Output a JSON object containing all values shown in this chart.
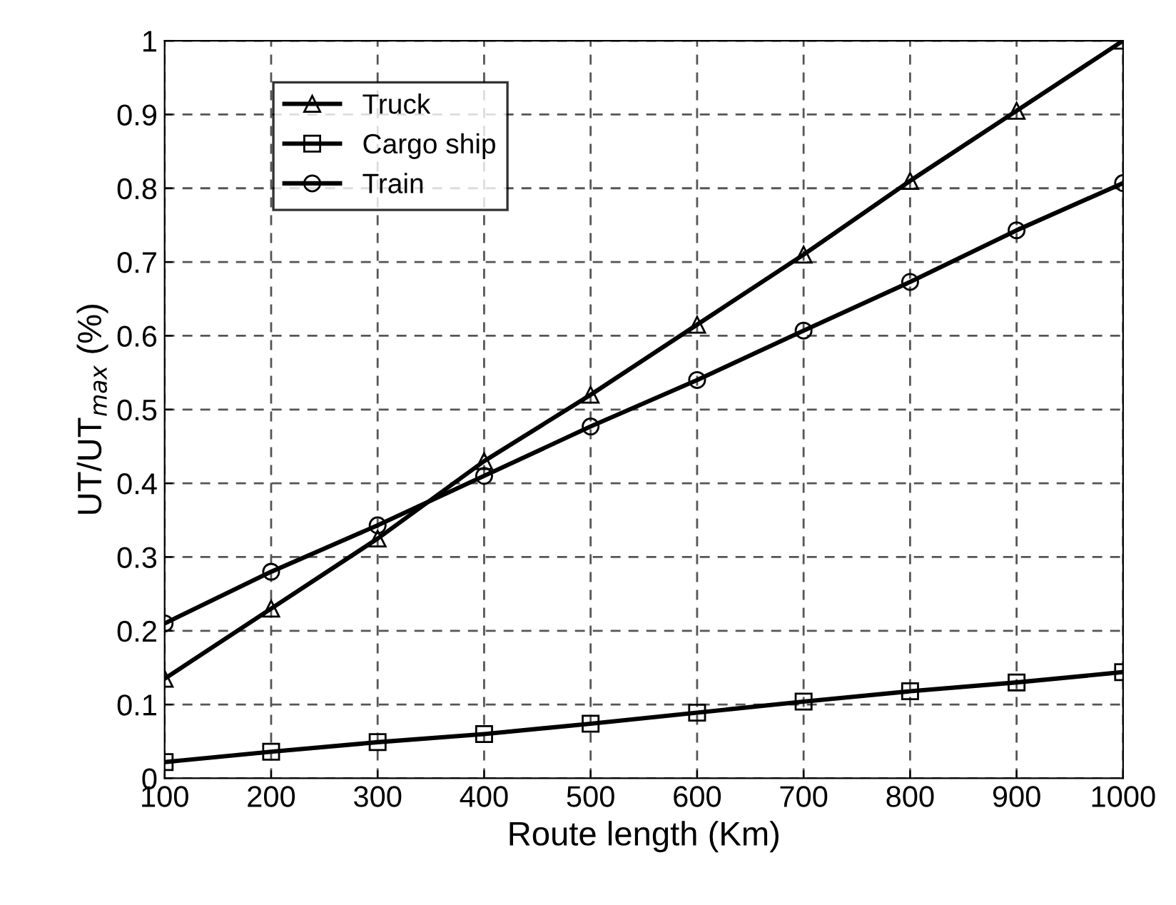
{
  "chart_data": {
    "type": "line",
    "xlabel": "Route length (Km)",
    "ylabel": "UT/UT$_{max}$ (%)",
    "x": [
      100,
      200,
      300,
      400,
      500,
      600,
      700,
      800,
      900,
      1000
    ],
    "xlim": [
      100,
      1000
    ],
    "xticks": [
      100,
      200,
      300,
      400,
      500,
      600,
      700,
      800,
      900,
      1000
    ],
    "ylim": [
      0,
      1
    ],
    "yticks": [
      0,
      0.1,
      0.2,
      0.3,
      0.4,
      0.5,
      0.6,
      0.7,
      0.8,
      0.9,
      1
    ],
    "grid": true,
    "legend": "top left",
    "line_style": "solid",
    "series": [
      {
        "name": "Truck",
        "color": "#000000",
        "marker": "triangle",
        "values": [
          0.135,
          0.23,
          0.325,
          0.43,
          0.52,
          0.615,
          0.71,
          0.81,
          0.905,
          1.0
        ]
      },
      {
        "name": "Cargo ship",
        "color": "#000000",
        "marker": "square",
        "values": [
          0.022,
          0.036,
          0.049,
          0.06,
          0.074,
          0.089,
          0.104,
          0.118,
          0.13,
          0.144
        ]
      },
      {
        "name": "Train",
        "color": "#000000",
        "marker": "circle",
        "values": [
          0.21,
          0.28,
          0.343,
          0.41,
          0.477,
          0.54,
          0.607,
          0.673,
          0.743,
          0.807
        ]
      }
    ]
  }
}
